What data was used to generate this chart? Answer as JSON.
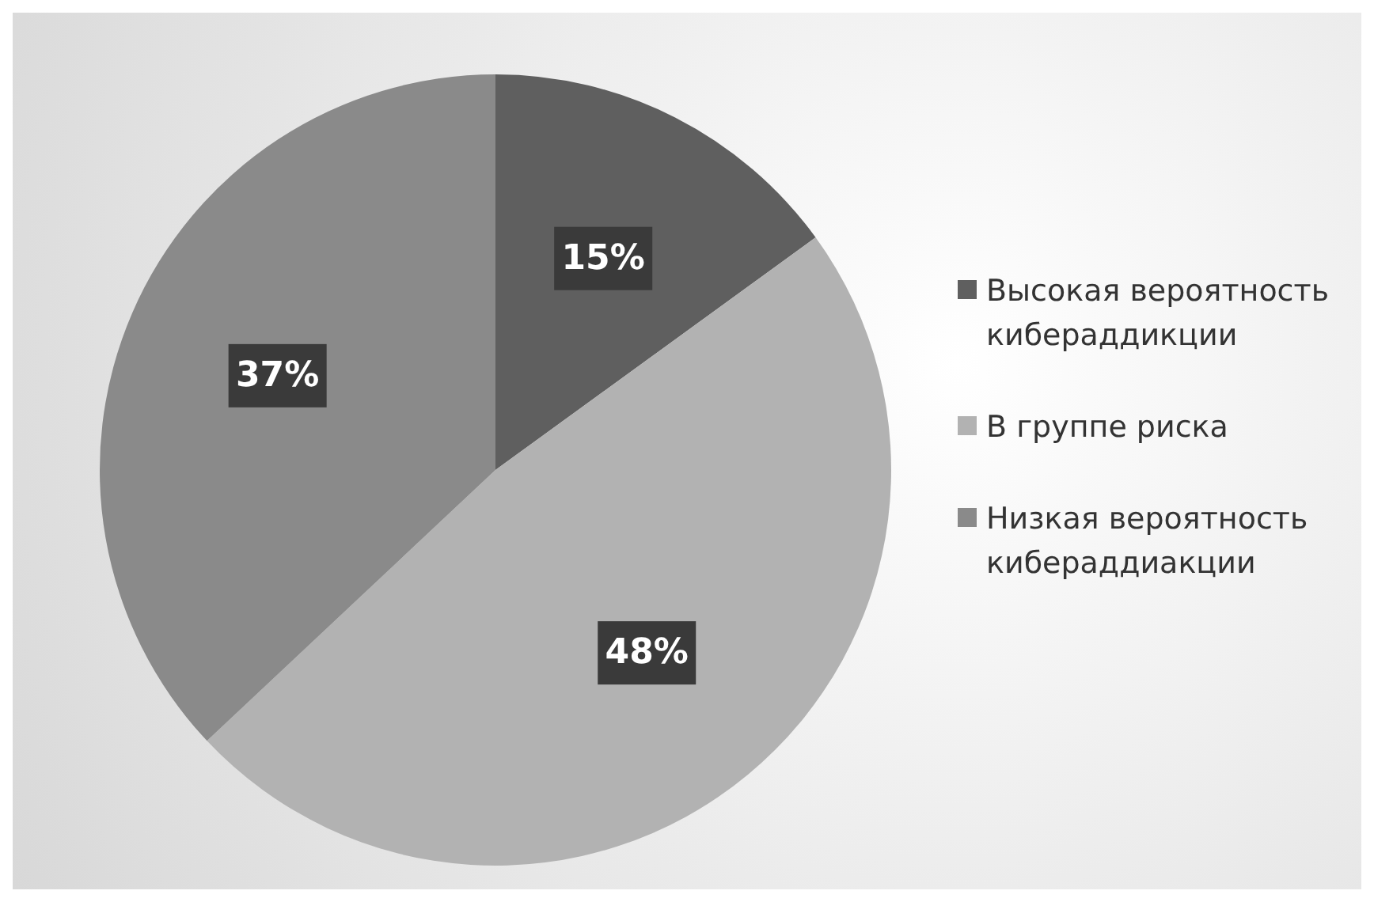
{
  "chart_data": {
    "type": "pie",
    "categories": [
      "Высокая вероятность кибераддикции",
      "В группе риска",
      "Низкая вероятность кибераддиакции"
    ],
    "values": [
      15,
      48,
      37
    ],
    "colors": [
      "#5f5f5f",
      "#b2b2b2",
      "#8a8a8a"
    ],
    "value_labels": [
      "15%",
      "48%",
      "37%"
    ],
    "legend": "right"
  }
}
